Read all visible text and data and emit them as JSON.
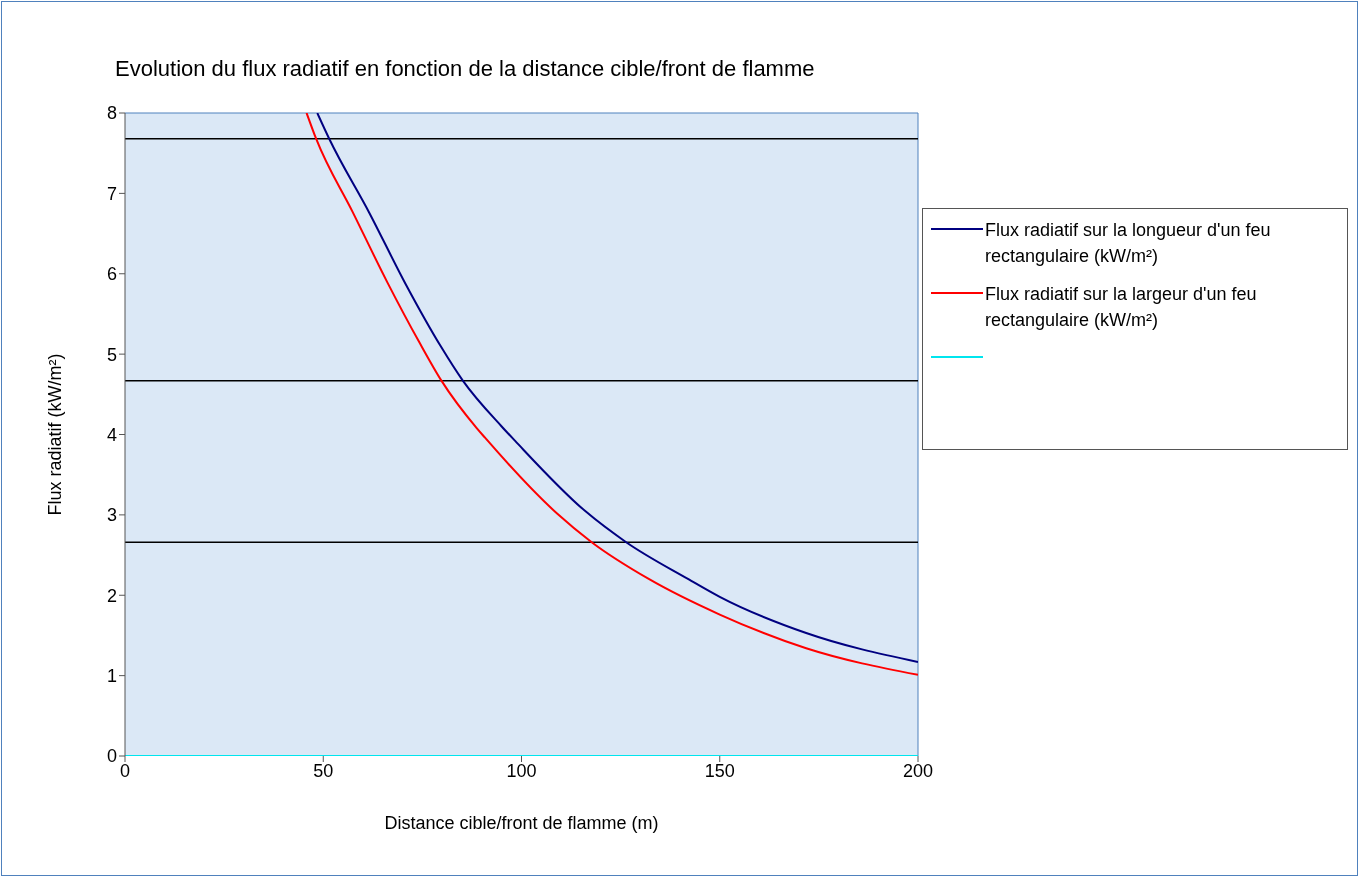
{
  "chart_data": {
    "type": "line",
    "title": "Evolution du flux radiatif en fonction de la distance cible/front de flamme",
    "xlabel": "Distance cible/front de flamme (m)",
    "ylabel": "Flux radiatif (kW/m²)",
    "series": [
      {
        "name": "Flux radiatif sur la longueur d'un feu rectangulaire (kW/m²)",
        "color": "#000080",
        "x": [
          48.5,
          51.5,
          61.6,
          70.9,
          79.6,
          85.2,
          95,
          98.4,
          116,
          126.4,
          142.1,
          150,
          171.8,
          200
        ],
        "values": [
          8,
          7.68,
          6.76,
          5.86,
          5.1,
          4.67,
          4.1,
          3.92,
          3.05,
          2.66,
          2.2,
          1.98,
          1.53,
          1.17
        ]
      },
      {
        "name": "Flux radiatif sur la largeur d'un feu rectangulaire (kW/m²)",
        "color": "#ff0000",
        "x": [
          45.8,
          48.2,
          57.4,
          66.2,
          74.2,
          79.8,
          88.7,
          90.8,
          108.9,
          117.7,
          132.2,
          150,
          171.8,
          200
        ],
        "values": [
          8,
          7.68,
          6.77,
          5.89,
          5.15,
          4.67,
          4.08,
          3.96,
          3.02,
          2.66,
          2.2,
          1.76,
          1.34,
          1.01
        ]
      },
      {
        "color": "#00e5ee",
        "x": [
          0,
          200
        ],
        "values": [
          0,
          0
        ]
      }
    ],
    "ref_lines": [
      {
        "axis": "y",
        "value": 7.68,
        "color": "#000000"
      },
      {
        "axis": "y",
        "value": 4.67,
        "color": "#000000"
      },
      {
        "axis": "y",
        "value": 2.66,
        "color": "#000000"
      }
    ],
    "xlim": [
      0,
      200
    ],
    "xticks": [
      0,
      50,
      100,
      150,
      200
    ],
    "ylim": [
      0,
      8
    ],
    "yticks": [
      0,
      1,
      2,
      3,
      4,
      5,
      6,
      7,
      8
    ],
    "grid": false,
    "legend": "right"
  }
}
